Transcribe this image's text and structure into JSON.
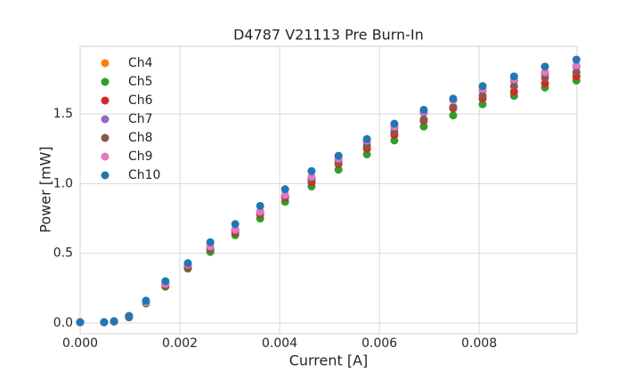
{
  "chart_data": {
    "type": "scatter",
    "title": "D4787 V21113 Pre Burn-In",
    "x_label": "Current [A]",
    "y_label": "Power [mW]",
    "x": [
      0,
      0.00048,
      0.00068,
      0.00098,
      0.00132,
      0.00171,
      0.00216,
      0.00261,
      0.00311,
      0.00361,
      0.00411,
      0.00464,
      0.00518,
      0.00575,
      0.0063,
      0.00689,
      0.00748,
      0.00807,
      0.0087,
      0.00932,
      0.00995
    ],
    "series": [
      {
        "name": "Ch4",
        "color": "#ff7f0e",
        "values": [
          0.005,
          0.005,
          0.012,
          0.05,
          0.15,
          0.28,
          0.41,
          0.54,
          0.67,
          0.79,
          0.91,
          1.04,
          1.17,
          1.3,
          1.4,
          1.51,
          1.6,
          1.67,
          1.74,
          1.79,
          1.84
        ]
      },
      {
        "name": "Ch5",
        "color": "#2ca02c",
        "values": [
          0.005,
          0.005,
          0.01,
          0.04,
          0.14,
          0.26,
          0.39,
          0.51,
          0.63,
          0.75,
          0.87,
          0.98,
          1.1,
          1.21,
          1.31,
          1.41,
          1.49,
          1.57,
          1.63,
          1.69,
          1.74
        ]
      },
      {
        "name": "Ch6",
        "color": "#d62728",
        "values": [
          0.005,
          0.005,
          0.01,
          0.045,
          0.15,
          0.27,
          0.4,
          0.53,
          0.65,
          0.78,
          0.9,
          1.01,
          1.14,
          1.25,
          1.35,
          1.45,
          1.54,
          1.61,
          1.66,
          1.72,
          1.77
        ]
      },
      {
        "name": "Ch7",
        "color": "#9467bd",
        "values": [
          0.005,
          0.005,
          0.012,
          0.05,
          0.15,
          0.28,
          0.41,
          0.54,
          0.67,
          0.79,
          0.91,
          1.04,
          1.17,
          1.3,
          1.4,
          1.51,
          1.6,
          1.67,
          1.74,
          1.79,
          1.84
        ]
      },
      {
        "name": "Ch8",
        "color": "#8c564b",
        "values": [
          0.005,
          0.005,
          0.01,
          0.045,
          0.15,
          0.28,
          0.41,
          0.53,
          0.66,
          0.79,
          0.91,
          1.03,
          1.15,
          1.27,
          1.37,
          1.46,
          1.55,
          1.63,
          1.7,
          1.76,
          1.8
        ]
      },
      {
        "name": "Ch9",
        "color": "#e377c2",
        "values": [
          0.005,
          0.005,
          0.012,
          0.05,
          0.15,
          0.28,
          0.42,
          0.55,
          0.67,
          0.8,
          0.92,
          1.05,
          1.18,
          1.31,
          1.41,
          1.52,
          1.6,
          1.68,
          1.75,
          1.8,
          1.85
        ]
      },
      {
        "name": "Ch10",
        "color": "#1f77b4",
        "values": [
          0.006,
          0.006,
          0.013,
          0.05,
          0.16,
          0.3,
          0.43,
          0.58,
          0.71,
          0.84,
          0.96,
          1.09,
          1.2,
          1.32,
          1.43,
          1.53,
          1.61,
          1.7,
          1.77,
          1.84,
          1.89
        ]
      }
    ],
    "xlim": [
      0,
      0.00996
    ],
    "ylim": [
      -0.077,
      1.986
    ],
    "xticks": [
      {
        "value": 0,
        "label": "0.000"
      },
      {
        "value": 0.002,
        "label": "0.002"
      },
      {
        "value": 0.004,
        "label": "0.004"
      },
      {
        "value": 0.006,
        "label": "0.006"
      },
      {
        "value": 0.008,
        "label": "0.008"
      }
    ],
    "yticks": [
      {
        "value": 0,
        "label": "0.0"
      },
      0.5,
      {
        "value": 1,
        "label": "1.0"
      },
      1.5
    ],
    "grid": true,
    "legend": "upper-left"
  }
}
